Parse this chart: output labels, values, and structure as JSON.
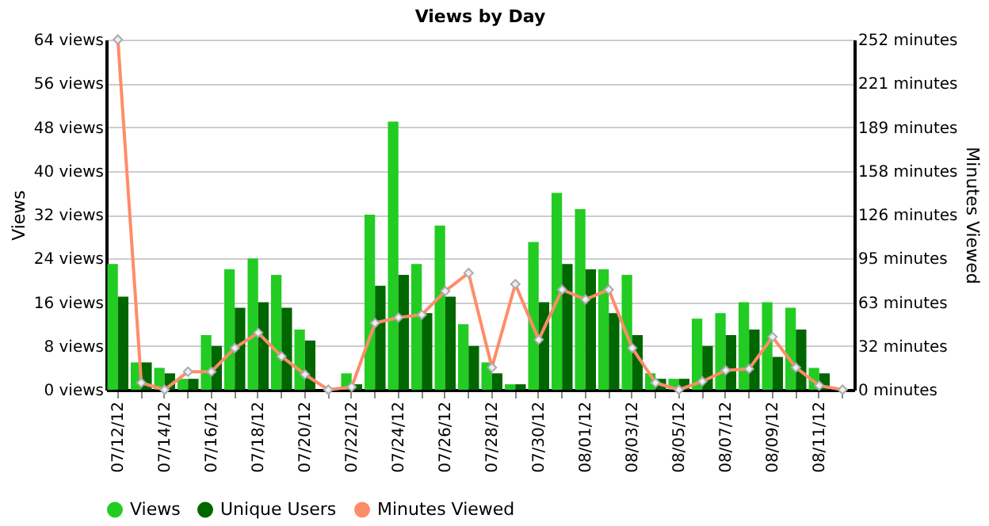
{
  "chart_data": {
    "type": "bar",
    "title": "Views by Day",
    "ylabel": "Views",
    "y2label": "Minutes Viewed",
    "categories": [
      "07/12/12",
      null,
      "07/14/12",
      null,
      "07/16/12",
      null,
      "07/18/12",
      null,
      "07/20/12",
      null,
      "07/22/12",
      null,
      "07/24/12",
      null,
      "07/26/12",
      null,
      "07/28/12",
      null,
      "07/30/12",
      null,
      "08/01/12",
      null,
      "08/03/12",
      null,
      "08/05/12",
      null,
      "08/07/12",
      null,
      "08/09/12",
      null,
      "08/11/12",
      null
    ],
    "series": [
      {
        "name": "Views",
        "color": "#22cc22",
        "values": [
          23,
          5,
          4,
          2,
          10,
          22,
          24,
          21,
          11,
          0,
          3,
          32,
          49,
          23,
          30,
          12,
          5,
          1,
          27,
          36,
          33,
          22,
          21,
          3,
          2,
          13,
          14,
          16,
          16,
          15,
          4,
          0
        ]
      },
      {
        "name": "Unique Users",
        "color": "#006600",
        "values": [
          17,
          5,
          3,
          2,
          8,
          15,
          16,
          15,
          9,
          0,
          1,
          19,
          21,
          14,
          17,
          8,
          3,
          1,
          16,
          23,
          22,
          14,
          10,
          2,
          2,
          8,
          10,
          11,
          6,
          11,
          3,
          0
        ]
      },
      {
        "name": "Minutes Viewed",
        "type": "line",
        "axis": "y2",
        "color": "#ff8c69",
        "values": [
          252,
          5,
          0,
          13,
          13,
          30,
          41,
          24,
          11,
          0,
          2,
          48,
          52,
          54,
          71,
          84,
          16,
          76,
          36,
          72,
          65,
          72,
          30,
          5,
          0,
          6,
          14,
          15,
          38,
          16,
          3,
          0
        ]
      }
    ],
    "ylim": [
      0,
      64
    ],
    "yticks": [
      {
        "value": 0,
        "label": "0 views"
      },
      {
        "value": 8,
        "label": "8 views"
      },
      {
        "value": 16,
        "label": "16 views"
      },
      {
        "value": 24,
        "label": "24 views"
      },
      {
        "value": 32,
        "label": "32 views"
      },
      {
        "value": 40,
        "label": "40 views"
      },
      {
        "value": 48,
        "label": "48 views"
      },
      {
        "value": 56,
        "label": "56 views"
      },
      {
        "value": 64,
        "label": "64 views"
      }
    ],
    "y2lim": [
      0,
      252
    ],
    "y2ticks": [
      {
        "value": 0,
        "label": "0 minutes"
      },
      {
        "value": 31.5,
        "label": "32 minutes"
      },
      {
        "value": 63,
        "label": "63 minutes"
      },
      {
        "value": 94.5,
        "label": "95 minutes"
      },
      {
        "value": 126,
        "label": "126 minutes"
      },
      {
        "value": 157.5,
        "label": "158 minutes"
      },
      {
        "value": 189,
        "label": "189 minutes"
      },
      {
        "value": 220.5,
        "label": "221 minutes"
      },
      {
        "value": 252,
        "label": "252 minutes"
      }
    ],
    "grid": "y",
    "legend": "bottom",
    "marker": "diamond",
    "line_style": "solid"
  }
}
